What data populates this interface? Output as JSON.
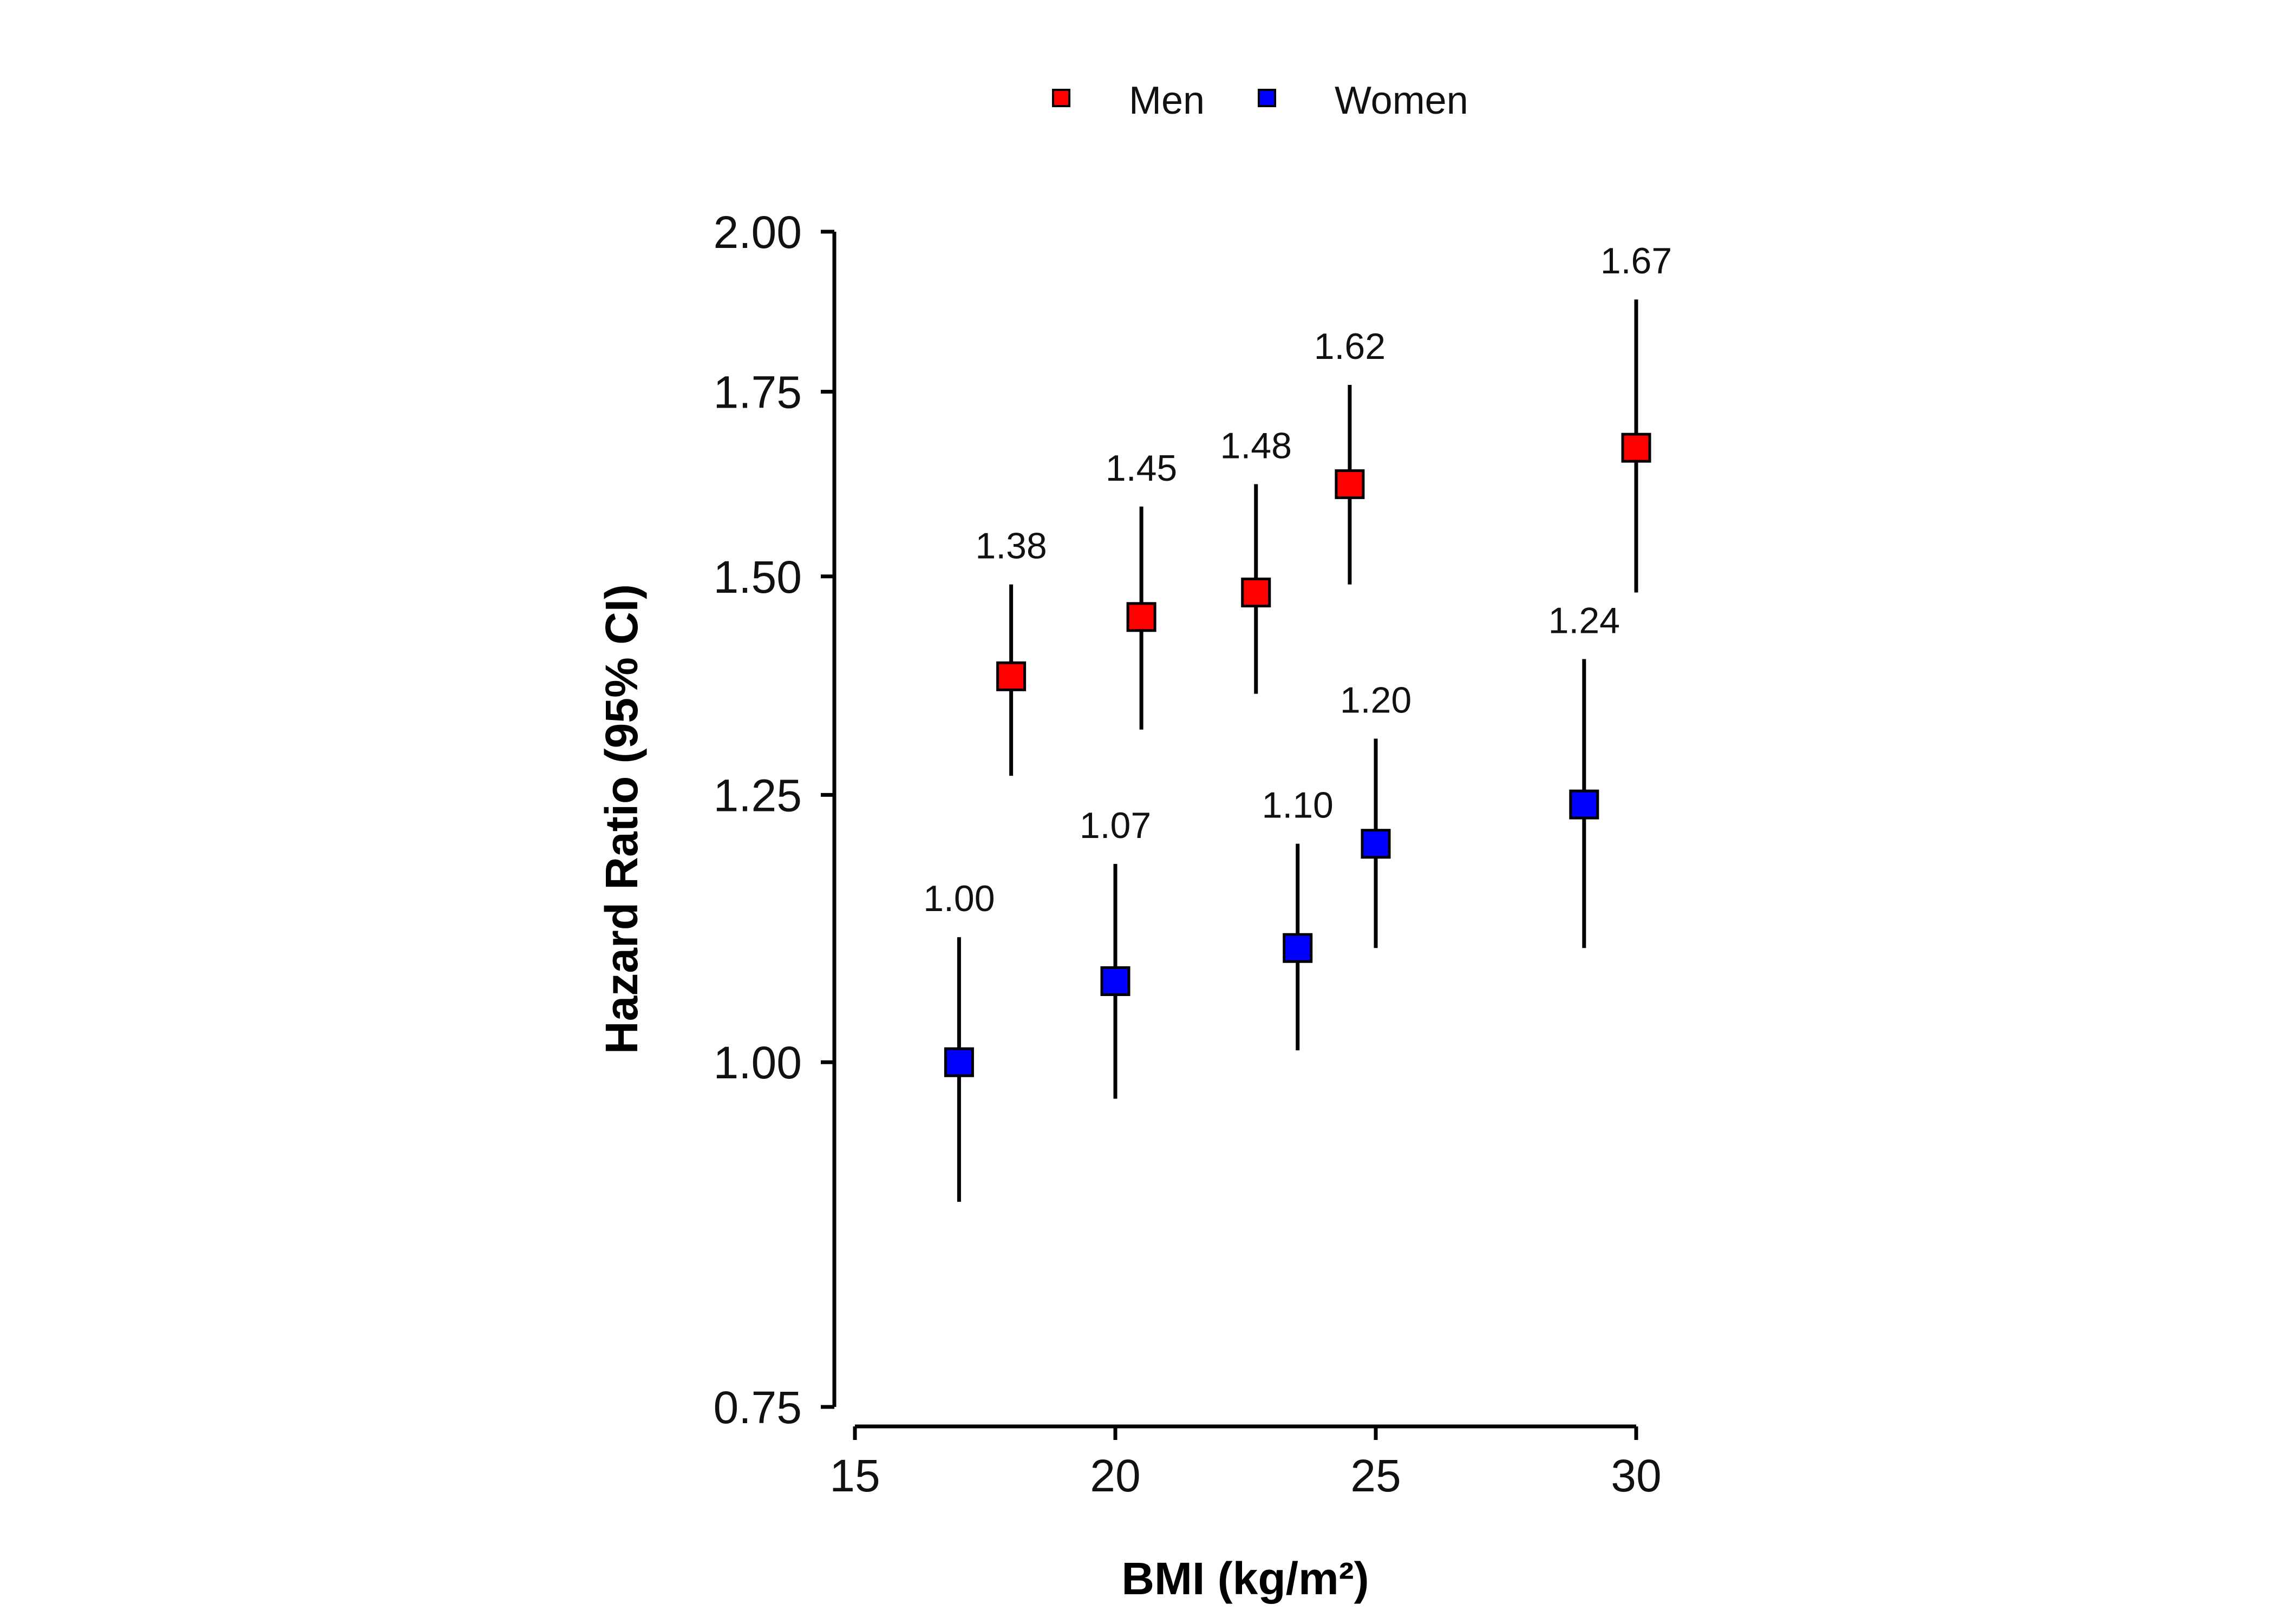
{
  "chart_data": {
    "type": "scatter",
    "title": "",
    "xlabel": "BMI (kg/m²)",
    "ylabel": "Hazard Ratio (95% CI)",
    "xlim": [
      15,
      30
    ],
    "ylim": [
      0.75,
      2.0
    ],
    "y_scale": "log",
    "x_ticks": [
      15,
      20,
      25,
      30
    ],
    "x_tick_labels": [
      "15",
      "20",
      "25",
      "30"
    ],
    "y_ticks": [
      0.75,
      1.0,
      1.25,
      1.5,
      1.75,
      2.0
    ],
    "y_tick_labels": [
      "0.75",
      "1.00",
      "1.25",
      "1.50",
      "1.75",
      "2.00"
    ],
    "grid": false,
    "legend_position": "top-center",
    "series": [
      {
        "name": "Men",
        "color": "#ff0000",
        "marker": "square",
        "points": [
          {
            "x": 18.0,
            "y": 1.38,
            "lower": 1.27,
            "upper": 1.49,
            "label": "1.38"
          },
          {
            "x": 20.5,
            "y": 1.45,
            "lower": 1.32,
            "upper": 1.59,
            "label": "1.45"
          },
          {
            "x": 22.7,
            "y": 1.48,
            "lower": 1.36,
            "upper": 1.62,
            "label": "1.48"
          },
          {
            "x": 24.5,
            "y": 1.62,
            "lower": 1.49,
            "upper": 1.76,
            "label": "1.62"
          },
          {
            "x": 30.0,
            "y": 1.67,
            "lower": 1.48,
            "upper": 1.89,
            "label": "1.67"
          }
        ]
      },
      {
        "name": "Women",
        "color": "#0000ff",
        "marker": "square",
        "points": [
          {
            "x": 17.0,
            "y": 1.0,
            "lower": 0.89,
            "upper": 1.11,
            "label": "1.00"
          },
          {
            "x": 20.0,
            "y": 1.07,
            "lower": 0.97,
            "upper": 1.18,
            "label": "1.07"
          },
          {
            "x": 23.5,
            "y": 1.1,
            "lower": 1.01,
            "upper": 1.2,
            "label": "1.10"
          },
          {
            "x": 25.0,
            "y": 1.2,
            "lower": 1.1,
            "upper": 1.31,
            "label": "1.20"
          },
          {
            "x": 29.0,
            "y": 1.24,
            "lower": 1.1,
            "upper": 1.4,
            "label": "1.24"
          }
        ]
      }
    ]
  }
}
